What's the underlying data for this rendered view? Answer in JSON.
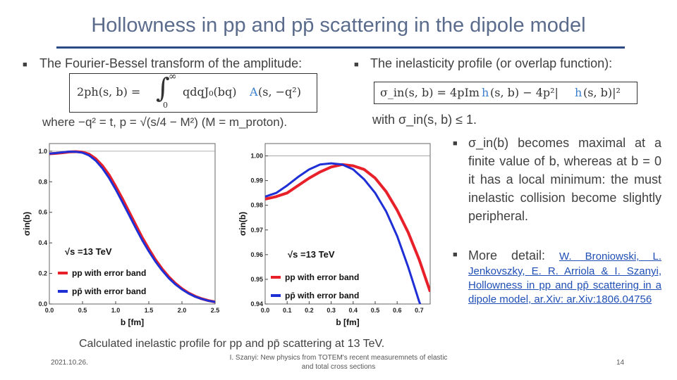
{
  "slide": {
    "title": "Hollowness in pp and pp̄ scattering in the dipole model",
    "left_bullet": "The Fourier-Bessel transform of the amplitude:",
    "left_eq_lhs": "2ph(s, b) =",
    "left_eq_upper": "∞",
    "left_eq_lower": "0",
    "left_eq_body": "qdqJ₀(bq)",
    "left_eq_A": "A",
    "left_eq_tail": "(s, −q²)",
    "left_where": "where −q² = t, p = √(s/4 − M²)  (M = m_proton).",
    "right_bullet": "The inelasticity profile (or overlap function):",
    "right_eq_a": "σ_in(s, b) = 4pIm",
    "right_eq_h1": "h",
    "right_eq_b": "(s, b) − 4p²|",
    "right_eq_h2": "h",
    "right_eq_c": "(s, b)|²",
    "right_with": "with σ_in(s, b) ≤ 1.",
    "right_para": "σ_in(b) becomes maximal at a finite value of b, whereas at b = 0 it has a local minimum: the must inelastic collision become slightly peripheral.",
    "more_label": "More detail: ",
    "more_link": "W. Broniowski, L. Jenkovszky, E. R. Arriola & I. Szanyi, Hollowness in pp and pp̄ scattering in a dipole model, ar.Xiv: ar.Xiv:1806.04756",
    "caption": "Calculated inelastic profile for pp and pp̄ scattering at 13 TeV.",
    "footer_date": "2021.10.26.",
    "footer_center": "I. Szanyi: New physics from TOTEM's recent measuremnets of elastic and total cross sections",
    "footer_page": "14"
  },
  "chart_data": [
    {
      "type": "line",
      "xlabel": "b [fm]",
      "ylabel": "σin(b)",
      "xlim": [
        0,
        2.5
      ],
      "ylim": [
        0,
        1.05
      ],
      "xticks": [
        "0.0",
        "0.5",
        "1.0",
        "1.5",
        "2.0",
        "2.5"
      ],
      "yticks": [
        "0.0",
        "0.2",
        "0.4",
        "0.6",
        "0.8",
        "1.0"
      ],
      "annotation": "√s =13 TeV",
      "legend": [
        "pp with error band",
        "pp̄ with error band"
      ],
      "colors": [
        "#e8202a",
        "#1f2fd6"
      ],
      "series": [
        {
          "name": "pp with error band",
          "x": [
            0,
            0.1,
            0.2,
            0.3,
            0.4,
            0.5,
            0.6,
            0.7,
            0.8,
            0.9,
            1.0,
            1.1,
            1.2,
            1.3,
            1.4,
            1.5,
            1.6,
            1.7,
            1.8,
            1.9,
            2.0,
            2.1,
            2.2,
            2.3,
            2.4,
            2.5
          ],
          "y": [
            0.983,
            0.986,
            0.99,
            0.995,
            0.997,
            0.994,
            0.98,
            0.95,
            0.905,
            0.845,
            0.77,
            0.69,
            0.605,
            0.52,
            0.435,
            0.36,
            0.29,
            0.23,
            0.178,
            0.135,
            0.1,
            0.072,
            0.05,
            0.034,
            0.022,
            0.014
          ]
        },
        {
          "name": "pp̄ with error band",
          "x": [
            0,
            0.1,
            0.2,
            0.3,
            0.4,
            0.5,
            0.6,
            0.7,
            0.8,
            0.9,
            1.0,
            1.1,
            1.2,
            1.3,
            1.4,
            1.5,
            1.6,
            1.7,
            1.8,
            1.9,
            2.0,
            2.1,
            2.2,
            2.3,
            2.4,
            2.5
          ],
          "y": [
            0.984,
            0.988,
            0.993,
            0.997,
            0.996,
            0.99,
            0.972,
            0.938,
            0.888,
            0.825,
            0.75,
            0.668,
            0.585,
            0.5,
            0.418,
            0.345,
            0.278,
            0.22,
            0.17,
            0.129,
            0.096,
            0.069,
            0.048,
            0.033,
            0.021,
            0.013
          ]
        }
      ]
    },
    {
      "type": "line",
      "xlabel": "b [fm]",
      "ylabel": "σin(b)",
      "xlim": [
        0,
        0.75
      ],
      "ylim": [
        0.94,
        1.005
      ],
      "xticks": [
        "0.0",
        "0.1",
        "0.2",
        "0.3",
        "0.4",
        "0.5",
        "0.6",
        "0.7"
      ],
      "yticks": [
        "0.94",
        "0.95",
        "0.96",
        "0.97",
        "0.98",
        "0.99",
        "1.00"
      ],
      "annotation": "√s =13 TeV",
      "legend": [
        "pp with error band",
        "pp̄ with error band"
      ],
      "colors": [
        "#e8202a",
        "#1f2fd6"
      ],
      "series": [
        {
          "name": "pp with error band",
          "x": [
            0,
            0.05,
            0.1,
            0.15,
            0.2,
            0.25,
            0.3,
            0.35,
            0.4,
            0.45,
            0.5,
            0.55,
            0.6,
            0.65,
            0.7,
            0.75
          ],
          "y": [
            0.9825,
            0.9835,
            0.985,
            0.988,
            0.991,
            0.9935,
            0.9955,
            0.9965,
            0.996,
            0.9945,
            0.991,
            0.9855,
            0.978,
            0.969,
            0.958,
            0.945
          ]
        },
        {
          "name": "pp̄ with error band",
          "x": [
            0,
            0.05,
            0.1,
            0.15,
            0.2,
            0.25,
            0.3,
            0.35,
            0.4,
            0.45,
            0.5,
            0.55,
            0.6,
            0.65,
            0.7,
            0.75
          ],
          "y": [
            0.9835,
            0.985,
            0.988,
            0.9915,
            0.9945,
            0.9965,
            0.997,
            0.9965,
            0.9945,
            0.9905,
            0.985,
            0.9775,
            0.9675,
            0.955,
            0.941,
            0.925
          ]
        }
      ]
    }
  ]
}
